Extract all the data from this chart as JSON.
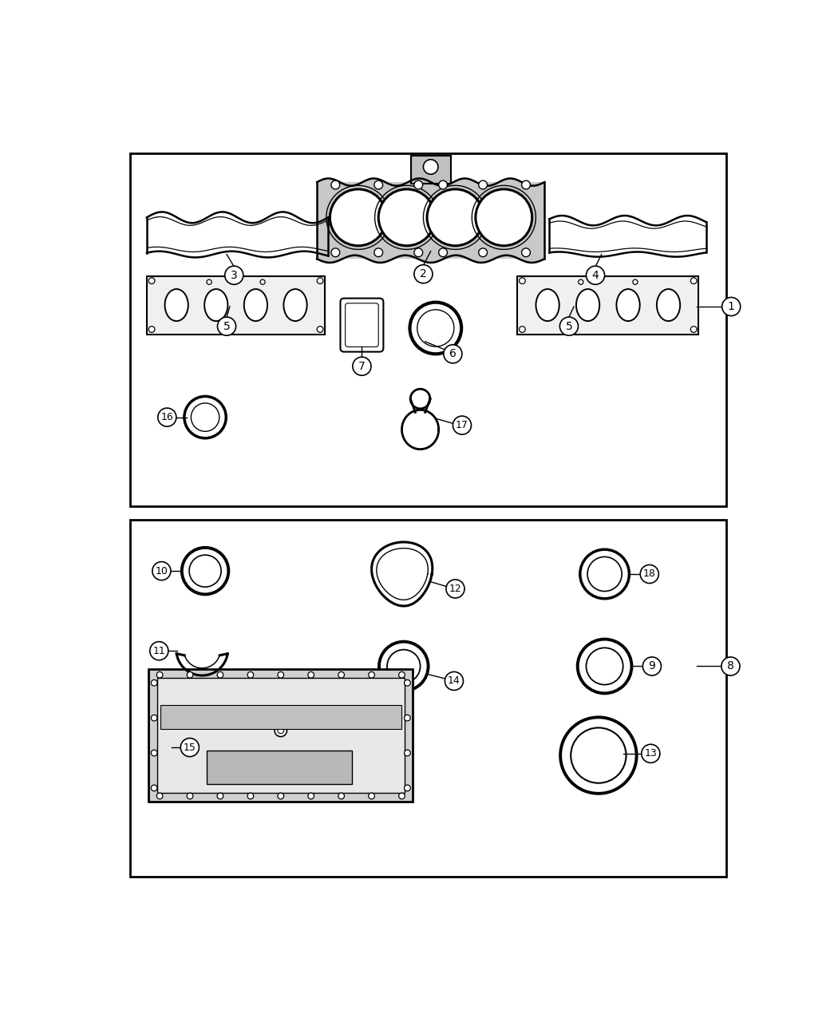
{
  "background_color": "#ffffff",
  "box_color": "#000000",
  "line_color": "#000000"
}
